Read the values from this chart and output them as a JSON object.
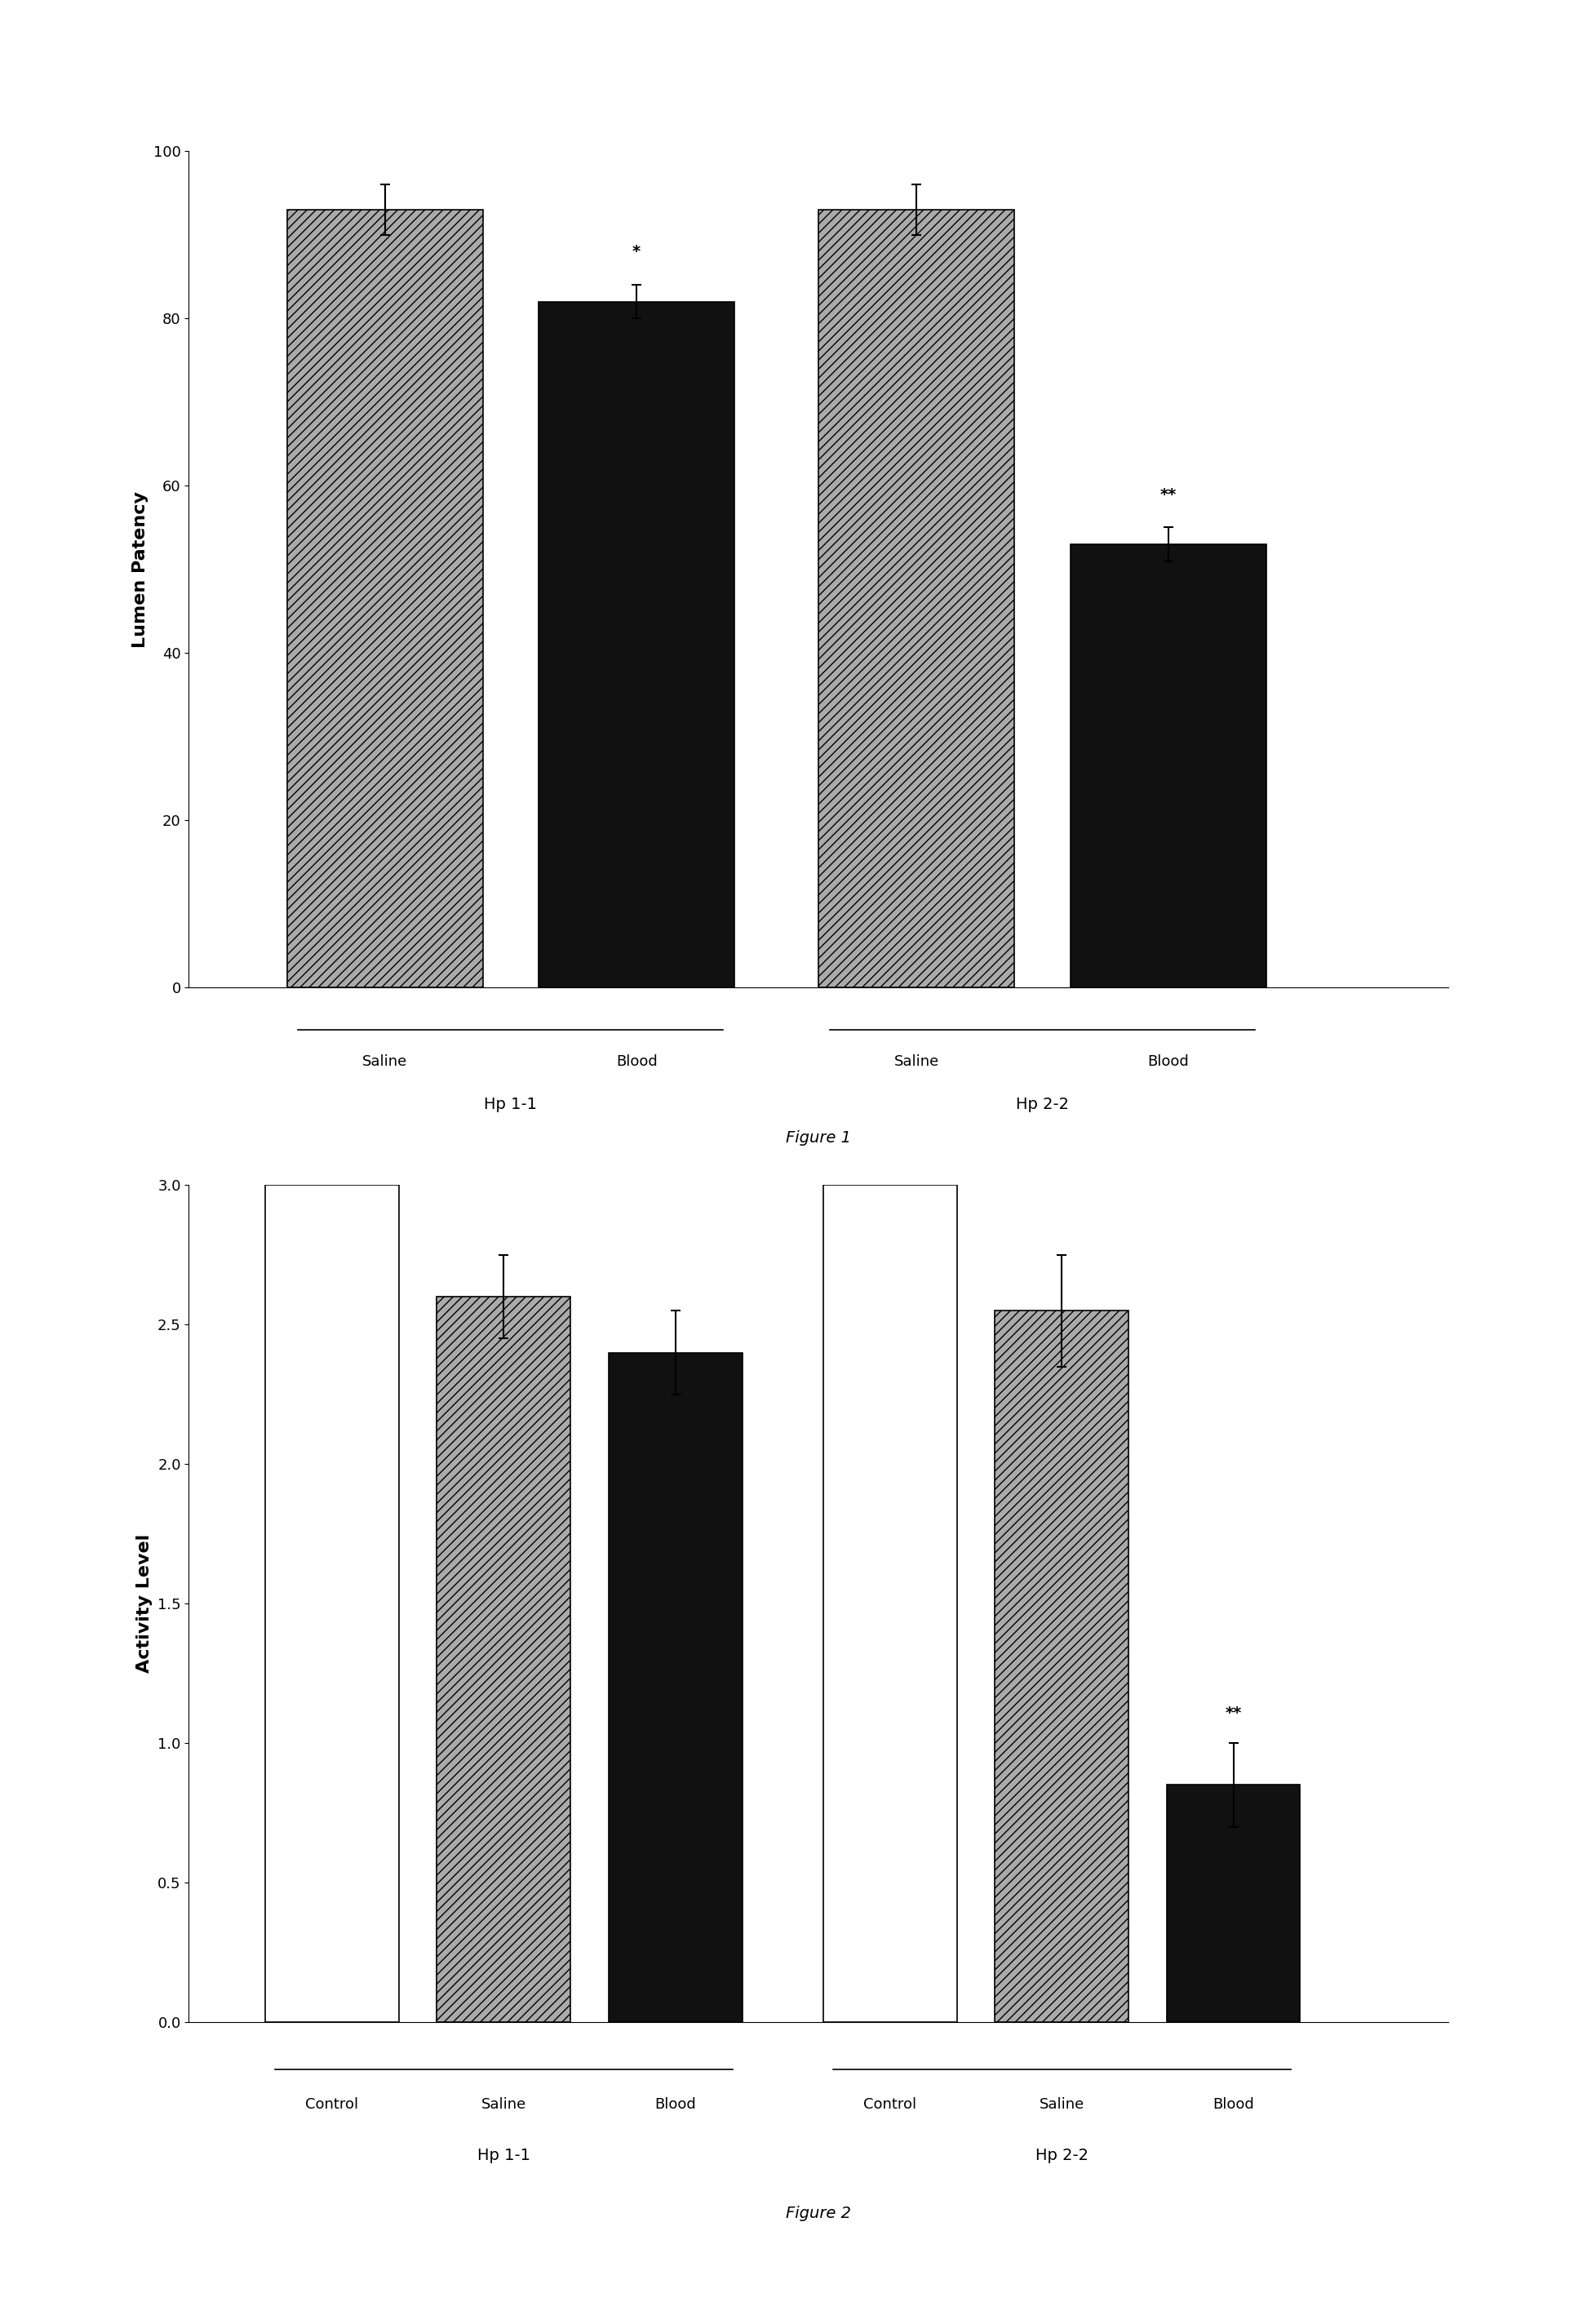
{
  "fig1": {
    "title": "Figure 1",
    "ylabel": "Lumen Patency",
    "ylim": [
      0,
      100
    ],
    "yticks": [
      0,
      20,
      40,
      60,
      80,
      100
    ],
    "groups": [
      "Hp 1-1",
      "Hp 2-2"
    ],
    "group_labels": [
      [
        "Saline",
        "Blood"
      ],
      [
        "Saline",
        "Blood"
      ]
    ],
    "values": [
      93,
      82,
      93,
      53
    ],
    "errors": [
      3,
      2,
      3,
      2
    ],
    "bar_colors": [
      "hatched_gray",
      "black",
      "hatched_gray",
      "black"
    ],
    "annotations": [
      "",
      "*",
      "",
      "**"
    ],
    "annotation_offsets": [
      0,
      5,
      0,
      5
    ]
  },
  "fig2": {
    "title": "Figure 2",
    "ylabel": "Activity Level",
    "ylim": [
      0.0,
      3.0
    ],
    "yticks": [
      0.0,
      0.5,
      1.0,
      1.5,
      2.0,
      2.5,
      3.0
    ],
    "groups": [
      "Hp 1-1",
      "Hp 2-2"
    ],
    "group_labels": [
      [
        "Control",
        "Saline",
        "Blood"
      ],
      [
        "Control",
        "Saline",
        "Blood"
      ]
    ],
    "values": [
      3.0,
      2.6,
      2.4,
      3.0,
      2.55,
      0.85
    ],
    "errors": [
      0,
      0.15,
      0.15,
      0,
      0.2,
      0.15
    ],
    "bar_colors": [
      "white",
      "hatched_gray",
      "black",
      "white",
      "hatched_gray",
      "black"
    ],
    "annotations": [
      "",
      "",
      "",
      "",
      "",
      "**"
    ],
    "annotation_offsets": [
      0,
      0,
      0,
      0,
      0,
      0.2
    ]
  },
  "background_color": "#ffffff",
  "font_size": 14,
  "label_font_size": 16,
  "tick_font_size": 13
}
